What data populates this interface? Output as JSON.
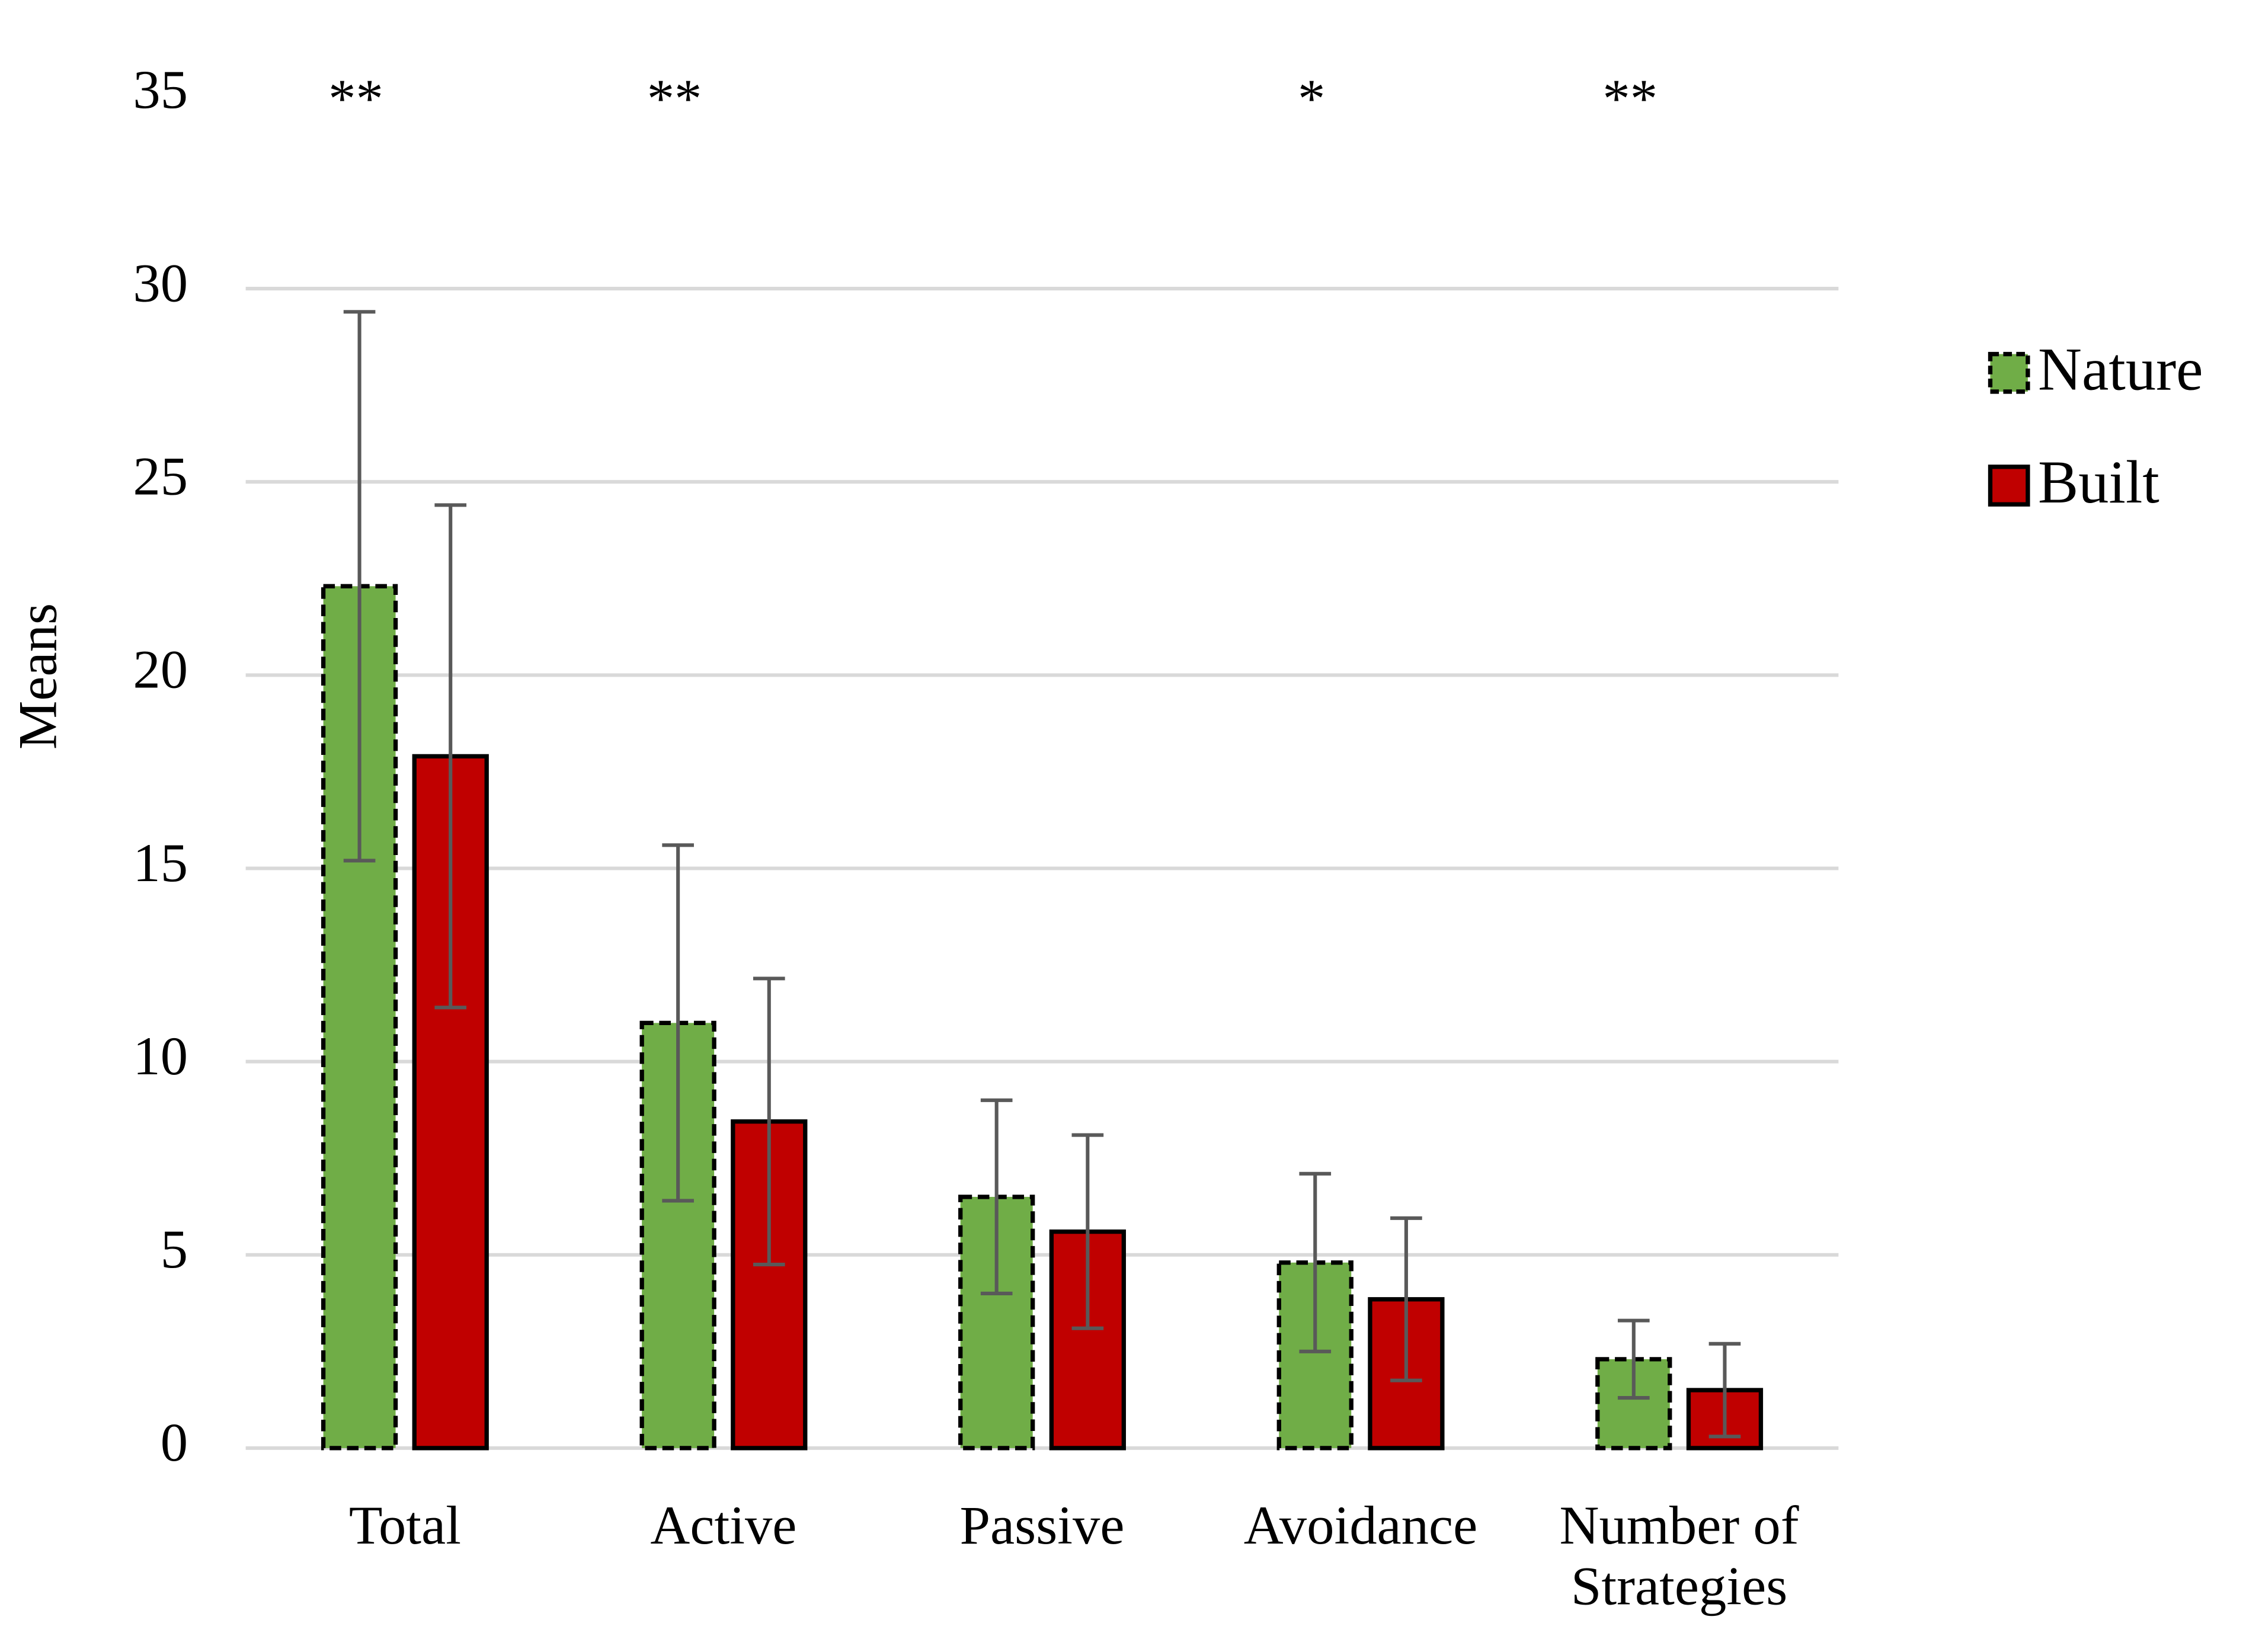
{
  "chart_data": {
    "type": "bar",
    "y_label": "Means",
    "categories": [
      "Total",
      "Active",
      "Passive",
      "Avoidance",
      "Number of Strategies"
    ],
    "significance": [
      "**",
      "**",
      null,
      "*",
      "**"
    ],
    "series": [
      {
        "name": "Nature",
        "color": "#70ad47",
        "values": [
          22.3,
          11.0,
          6.5,
          4.8,
          2.3
        ],
        "errors": [
          7.1,
          4.6,
          2.5,
          2.3,
          1.0
        ]
      },
      {
        "name": "Built",
        "color": "#c00000",
        "values": [
          17.9,
          8.45,
          5.6,
          3.85,
          1.5
        ],
        "errors": [
          6.5,
          3.7,
          2.5,
          2.1,
          1.2
        ]
      }
    ],
    "ylim": [
      0,
      35
    ],
    "yticks": [
      0,
      5,
      10,
      15,
      20,
      25,
      30,
      35
    ],
    "grid": true,
    "legend": "right"
  }
}
